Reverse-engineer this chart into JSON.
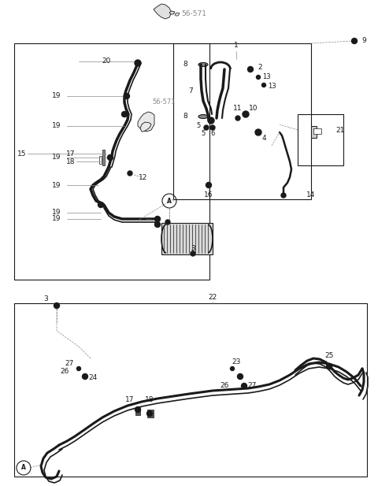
{
  "bg_color": "#ffffff",
  "line_color": "#1a1a1a",
  "gray_color": "#888888",
  "fig_width": 4.8,
  "fig_height": 6.17,
  "dpi": 100
}
